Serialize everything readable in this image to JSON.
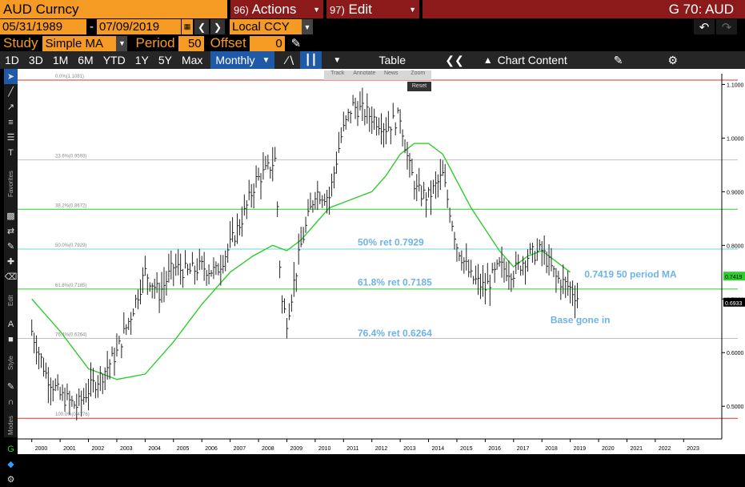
{
  "header": {
    "security": "AUD Curncy",
    "actions_num": "96)",
    "actions_label": "Actions",
    "edit_num": "97)",
    "edit_label": "Edit",
    "command": "G 70: AUD"
  },
  "daterow": {
    "start_date": "05/31/1989",
    "dash": "-",
    "end_date": "07/09/2019",
    "currency": "Local CCY"
  },
  "studyrow": {
    "study_label": "Study",
    "study_value": "Simple MA",
    "period_label": "Period",
    "period_value": "50",
    "offset_label": "Offset",
    "offset_value": "0"
  },
  "toolbar": {
    "ranges": [
      "1D",
      "3D",
      "1M",
      "6M",
      "YTD",
      "1Y",
      "5Y",
      "Max"
    ],
    "frequency": "Monthly",
    "table_label": "Table",
    "chart_content_label": "Chart Content"
  },
  "mini_tools": {
    "track": "Track",
    "annotate": "Annotate",
    "news": "News",
    "zoom": "Zoom",
    "reset": "Reset"
  },
  "left_labels": {
    "favorites": "Favorites",
    "edit": "Edit",
    "style": "Style",
    "modes": "Modes"
  },
  "colors": {
    "bloomberg_orange": "#f59a23",
    "header_red": "#8c1a1a",
    "ma_green": "#2ecc2e",
    "annotation_blue": "#6fb3e6",
    "selected_blue": "#1e5aa8"
  },
  "chart_data": {
    "type": "ohlc",
    "title": "",
    "xlabel": "",
    "ylabel": "",
    "x_ticks": [
      "2000",
      "2001",
      "2002",
      "2003",
      "2004",
      "2005",
      "2006",
      "2007",
      "2008",
      "2009",
      "2010",
      "2011",
      "2012",
      "2013",
      "2014",
      "2015",
      "2016",
      "2017",
      "2018",
      "2019",
      "2020",
      "2021",
      "2022",
      "2023"
    ],
    "y_ticks": [
      "0.5000",
      "0.6000",
      "0.7000",
      "0.8000",
      "0.9000",
      "1.0000",
      "1.1000"
    ],
    "ylim": [
      0.46,
      1.12
    ],
    "xlim": [
      1999.5,
      2023.5
    ],
    "price_series": {
      "name": "AUD Curncy",
      "x": [
        2000.0,
        2000.5,
        2001.0,
        2001.3,
        2001.6,
        2002.0,
        2002.5,
        2003.0,
        2003.5,
        2004.0,
        2004.5,
        2005.0,
        2005.5,
        2006.0,
        2006.5,
        2007.0,
        2007.5,
        2007.9,
        2008.3,
        2008.6,
        2008.8,
        2009.0,
        2009.5,
        2010.0,
        2010.5,
        2010.9,
        2011.3,
        2011.7,
        2012.0,
        2012.5,
        2013.0,
        2013.3,
        2013.6,
        2014.0,
        2014.5,
        2015.0,
        2015.5,
        2016.0,
        2016.5,
        2017.0,
        2017.5,
        2018.0,
        2018.5,
        2019.0,
        2019.3
      ],
      "y": [
        0.64,
        0.56,
        0.52,
        0.51,
        0.5,
        0.53,
        0.56,
        0.6,
        0.67,
        0.75,
        0.71,
        0.76,
        0.75,
        0.76,
        0.75,
        0.8,
        0.86,
        0.92,
        0.94,
        0.96,
        0.7,
        0.66,
        0.8,
        0.9,
        0.89,
        1.0,
        1.06,
        1.05,
        1.04,
        1.02,
        1.04,
        0.95,
        0.9,
        0.89,
        0.93,
        0.8,
        0.74,
        0.72,
        0.76,
        0.75,
        0.78,
        0.79,
        0.74,
        0.72,
        0.7
      ]
    },
    "series": [
      {
        "name": "",
        "type": "line",
        "x": [
          2000.0,
          2001.0,
          2002.0,
          2003.0,
          2004.0,
          2005.0,
          2006.0,
          2007.0,
          2007.8,
          2008.5,
          2009.0,
          2009.5,
          2010.0,
          2010.5,
          2011.0,
          2011.5,
          2012.0,
          2012.5,
          2013.0,
          2013.5,
          2014.0,
          2014.5,
          2015.0,
          2015.5,
          2016.0,
          2016.5,
          2017.0,
          2017.5,
          2018.0,
          2018.5,
          2019.0
        ],
        "y": [
          0.7,
          0.64,
          0.57,
          0.55,
          0.56,
          0.62,
          0.69,
          0.75,
          0.78,
          0.8,
          0.79,
          0.81,
          0.84,
          0.87,
          0.88,
          0.89,
          0.9,
          0.93,
          0.97,
          0.99,
          0.99,
          0.97,
          0.92,
          0.87,
          0.83,
          0.79,
          0.76,
          0.78,
          0.79,
          0.77,
          0.75
        ]
      }
    ],
    "hlines": [
      {
        "label": "0.0%(1.1081)",
        "value": 1.1081,
        "color": "#e03030"
      },
      {
        "label": "23.6%(0.9593)",
        "value": 0.9593,
        "color": "#c0c0c0"
      },
      {
        "label": "38.2%(0.8672)",
        "value": 0.8672,
        "color": "#2ecc2e"
      },
      {
        "label": "50.0%(0.7929)",
        "value": 0.7929,
        "color": "#6fd3e6"
      },
      {
        "label": "61.8%(0.7185)",
        "value": 0.7185,
        "color": "#2ecc2e"
      },
      {
        "label": "76.4%(0.6264)",
        "value": 0.6264,
        "color": "#c0c0c0"
      },
      {
        "label": "100.0%(0.4776)",
        "value": 0.4776,
        "color": "#e03030"
      }
    ],
    "annotations": [
      {
        "text": "50% ret 0.7929",
        "x": 2011.5,
        "y": 0.8
      },
      {
        "text": "61.8% ret 0.7185",
        "x": 2011.5,
        "y": 0.725
      },
      {
        "text": "76.4% ret 0.6264",
        "x": 2011.5,
        "y": 0.63
      },
      {
        "text": "0.7419 50 period MA",
        "x": 2019.5,
        "y": 0.74
      },
      {
        "text": "Base gone in",
        "x": 2018.3,
        "y": 0.655
      }
    ],
    "axis_labels": [
      {
        "text": "0.7419",
        "value": 0.7419,
        "color": "#2ecc2e"
      },
      {
        "text": "0.6933",
        "value": 0.6933,
        "color": "#000000"
      }
    ],
    "grid": false
  }
}
